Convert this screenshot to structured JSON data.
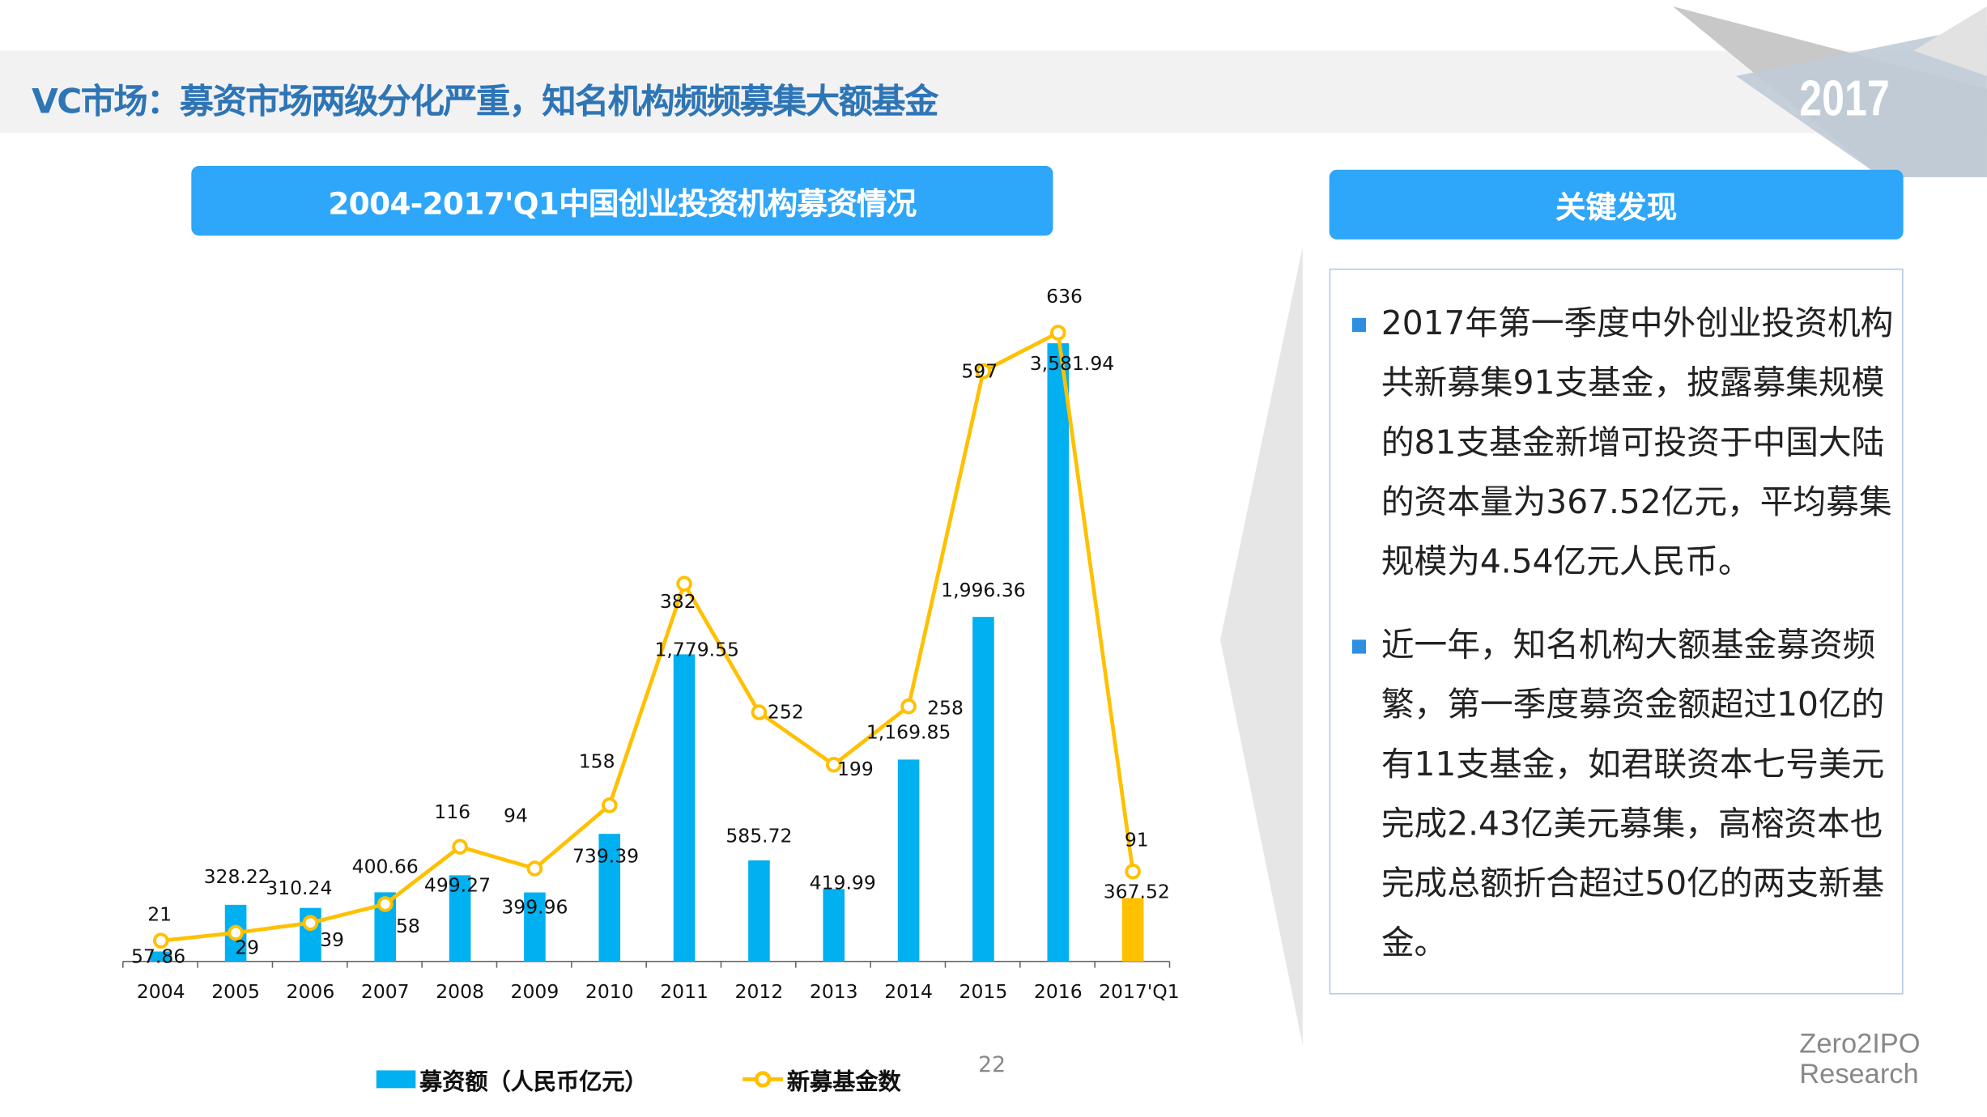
{
  "header": {
    "title": "VC市场：募资市场两级分化严重，知名机构频频募集大额基金",
    "year": "2017"
  },
  "chart_title": "2004-2017'Q1中国创业投资机构募资情况",
  "key_findings": {
    "title": "关键发现",
    "bullets": [
      "2017年第一季度中外创业投资机构共新募集91支基金，披露募集规模的81支基金新增可投资于中国大陆的资本量为367.52亿元，平均募集规模为4.54亿元人民币。",
      "近一年，知名机构大额基金募资频繁，第一季度募资金额超过10亿的有11支基金，如君联资本七号美元完成2.43亿美元募集，高榕资本也完成总额折合超过50亿的两支新基金。"
    ]
  },
  "page_number": "22",
  "logo": {
    "line1": "Zero2IPO",
    "line2": "Research"
  },
  "colors": {
    "bar": "#00b0f0",
    "bar_highlight": "#ffc000",
    "line": "#ffc000",
    "accent": "#2ea6f9",
    "title": "#2e75b6"
  },
  "chart_data": {
    "type": "bar+line",
    "title": "2004-2017'Q1中国创业投资机构募资情况",
    "categories": [
      "2004",
      "2005",
      "2006",
      "2007",
      "2008",
      "2009",
      "2010",
      "2011",
      "2012",
      "2013",
      "2014",
      "2015",
      "2016",
      "2017'Q1"
    ],
    "series": [
      {
        "name": "募资额（人民币亿元）",
        "type": "bar",
        "values": [
          57.86,
          328.22,
          310.24,
          400.66,
          499.27,
          399.96,
          739.39,
          1779.55,
          585.72,
          419.99,
          1169.85,
          1996.36,
          3581.94,
          367.52
        ],
        "labels": [
          "57.86",
          "328.22",
          "310.24",
          "400.66",
          "499.27",
          "399.96",
          "739.39",
          "1,779.55",
          "585.72",
          "419.99",
          "1,169.85",
          "1,996.36",
          "3,581.94",
          "367.52"
        ]
      },
      {
        "name": "新募基金数",
        "type": "line",
        "values": [
          21,
          29,
          39,
          58,
          116,
          94,
          158,
          382,
          252,
          199,
          258,
          597,
          636,
          91
        ],
        "labels": [
          "21",
          "29",
          "39",
          "58",
          "116",
          "94",
          "158",
          "382",
          "252",
          "199",
          "258",
          "597",
          "636",
          "91"
        ]
      }
    ],
    "legend": "bottom"
  }
}
